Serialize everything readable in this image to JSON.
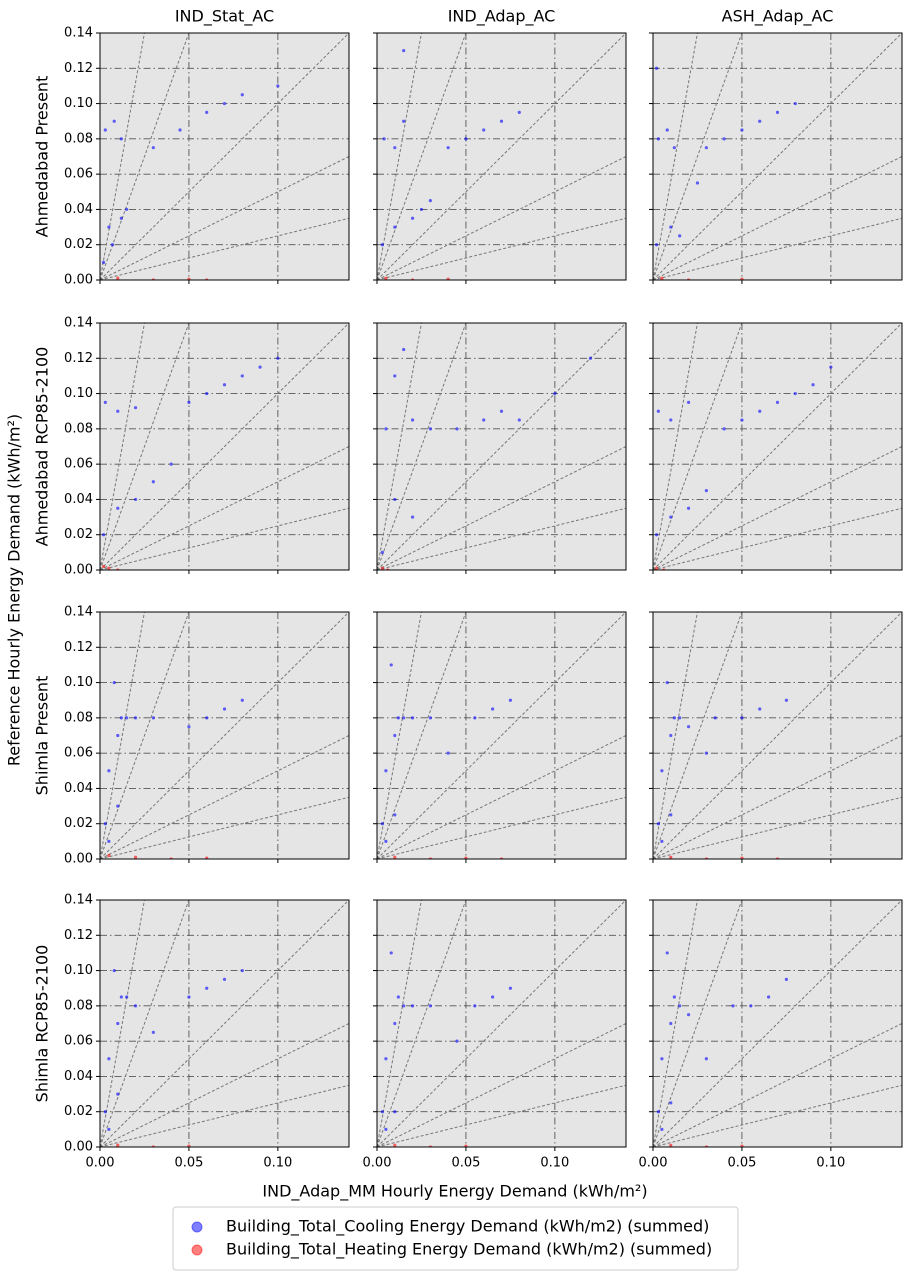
{
  "figure": {
    "xlabel": "IND_Adap_MM Hourly Energy Demand (kWh/m²)",
    "ylabel": "Reference Hourly Energy Demand (kWh/m²)",
    "xlim": [
      0,
      0.14
    ],
    "ylim": [
      0,
      0.14
    ],
    "xticks": [
      {
        "value": 0,
        "label": "0.00"
      },
      {
        "value": 0.05,
        "label": "0.05"
      },
      {
        "value": 0.1,
        "label": "0.10"
      }
    ],
    "yticks": [
      {
        "value": 0,
        "label": "0.00"
      },
      {
        "value": 0.02,
        "label": "0.02"
      },
      {
        "value": 0.04,
        "label": "0.04"
      },
      {
        "value": 0.06,
        "label": "0.06"
      },
      {
        "value": 0.08,
        "label": "0.08"
      },
      {
        "value": 0.1,
        "label": "0.10"
      },
      {
        "value": 0.12,
        "label": "0.12"
      },
      {
        "value": 0.14,
        "label": "0.14"
      }
    ],
    "grid": true,
    "reference_slopes": [
      0.25,
      0.5,
      1,
      2.8,
      5.6
    ],
    "legend": [
      {
        "name": "Building_Total_Cooling Energy Demand (kWh/m2) (summed)",
        "color": "#0000ff"
      },
      {
        "name": "Building_Total_Heating Energy Demand (kWh/m2) (summed)",
        "color": "#ff0000"
      }
    ]
  },
  "chart_data": [
    {
      "type": "scatter",
      "title": "IND_Stat_AC",
      "ylabel": "Ahmedabad Present",
      "series": [
        {
          "x": [
            0.003,
            0.008,
            0.012,
            0.005,
            0.015,
            0.002,
            0.007,
            0.012,
            0.03,
            0.045,
            0.06,
            0.07,
            0.08,
            0.1
          ],
          "values": [
            0.085,
            0.09,
            0.08,
            0.03,
            0.04,
            0.01,
            0.02,
            0.035,
            0.075,
            0.085,
            0.095,
            0.1,
            0.105,
            0.11
          ]
        },
        {
          "x": [
            0.01,
            0.03,
            0.05,
            0.06
          ],
          "values": [
            0.001,
            0,
            0.0005,
            0
          ]
        }
      ]
    },
    {
      "type": "scatter",
      "title": "IND_Adap_AC",
      "series": [
        {
          "x": [
            0.004,
            0.01,
            0.015,
            0.003,
            0.01,
            0.02,
            0.025,
            0.03,
            0.04,
            0.05,
            0.06,
            0.07,
            0.08,
            0.015
          ],
          "values": [
            0.08,
            0.075,
            0.09,
            0.02,
            0.03,
            0.035,
            0.04,
            0.045,
            0.075,
            0.08,
            0.085,
            0.09,
            0.095,
            0.13
          ]
        },
        {
          "x": [
            0.005,
            0.02,
            0.04
          ],
          "values": [
            0.001,
            0,
            0.0005
          ]
        }
      ]
    },
    {
      "type": "scatter",
      "title": "ASH_Adap_AC",
      "series": [
        {
          "x": [
            0.003,
            0.008,
            0.012,
            0.002,
            0.01,
            0.015,
            0.025,
            0.03,
            0.04,
            0.05,
            0.06,
            0.07,
            0.08,
            0.002
          ],
          "values": [
            0.08,
            0.085,
            0.075,
            0.02,
            0.03,
            0.025,
            0.055,
            0.075,
            0.08,
            0.085,
            0.09,
            0.095,
            0.1,
            0.12
          ]
        },
        {
          "x": [
            0.005,
            0.02,
            0.05
          ],
          "values": [
            0.001,
            0,
            0.0005
          ]
        }
      ]
    },
    {
      "type": "scatter",
      "ylabel": "Ahmedabad RCP85-2100",
      "series": [
        {
          "x": [
            0.003,
            0.01,
            0.02,
            0.002,
            0.01,
            0.02,
            0.03,
            0.04,
            0.05,
            0.06,
            0.07,
            0.08,
            0.09,
            0.1
          ],
          "values": [
            0.095,
            0.09,
            0.092,
            0.02,
            0.035,
            0.04,
            0.05,
            0.06,
            0.095,
            0.1,
            0.105,
            0.11,
            0.115,
            0.12
          ]
        },
        {
          "x": [
            0.002,
            0.005,
            0.01
          ],
          "values": [
            0.002,
            0.001,
            0
          ]
        }
      ]
    },
    {
      "type": "scatter",
      "series": [
        {
          "x": [
            0.005,
            0.01,
            0.015,
            0.02,
            0.03,
            0.045,
            0.06,
            0.07,
            0.08,
            0.1,
            0.12,
            0.003,
            0.01,
            0.02
          ],
          "values": [
            0.08,
            0.11,
            0.125,
            0.085,
            0.08,
            0.08,
            0.085,
            0.09,
            0.085,
            0.1,
            0.12,
            0.01,
            0.04,
            0.03
          ]
        },
        {
          "x": [
            0.003,
            0.006
          ],
          "values": [
            0.001,
            0
          ]
        }
      ]
    },
    {
      "type": "scatter",
      "series": [
        {
          "x": [
            0.003,
            0.01,
            0.02,
            0.002,
            0.01,
            0.02,
            0.03,
            0.04,
            0.05,
            0.06,
            0.07,
            0.08,
            0.09,
            0.1
          ],
          "values": [
            0.09,
            0.085,
            0.095,
            0.02,
            0.03,
            0.035,
            0.045,
            0.08,
            0.085,
            0.09,
            0.095,
            0.1,
            0.105,
            0.115
          ]
        },
        {
          "x": [
            0.002,
            0.006
          ],
          "values": [
            0.001,
            0
          ]
        }
      ]
    },
    {
      "type": "scatter",
      "ylabel": "Shimla Present",
      "series": [
        {
          "x": [
            0.005,
            0.01,
            0.012,
            0.008,
            0.003,
            0.015,
            0.02,
            0.03,
            0.05,
            0.06,
            0.07,
            0.08,
            0.01,
            0.005
          ],
          "values": [
            0.05,
            0.07,
            0.08,
            0.1,
            0.02,
            0.08,
            0.08,
            0.08,
            0.075,
            0.08,
            0.085,
            0.09,
            0.03,
            0.01
          ]
        },
        {
          "x": [
            0.005,
            0.02,
            0.04,
            0.06
          ],
          "values": [
            0.002,
            0.001,
            0,
            0.0005
          ]
        }
      ]
    },
    {
      "type": "scatter",
      "series": [
        {
          "x": [
            0.005,
            0.01,
            0.012,
            0.008,
            0.003,
            0.015,
            0.02,
            0.03,
            0.04,
            0.055,
            0.065,
            0.075,
            0.01,
            0.005
          ],
          "values": [
            0.05,
            0.07,
            0.08,
            0.11,
            0.02,
            0.08,
            0.08,
            0.08,
            0.06,
            0.08,
            0.085,
            0.09,
            0.025,
            0.01
          ]
        },
        {
          "x": [
            0.01,
            0.03,
            0.05,
            0.07
          ],
          "values": [
            0.001,
            0,
            0.0005,
            0
          ]
        }
      ]
    },
    {
      "type": "scatter",
      "series": [
        {
          "x": [
            0.005,
            0.01,
            0.012,
            0.008,
            0.003,
            0.015,
            0.02,
            0.03,
            0.035,
            0.05,
            0.06,
            0.075,
            0.01,
            0.005
          ],
          "values": [
            0.05,
            0.07,
            0.08,
            0.1,
            0.02,
            0.08,
            0.075,
            0.06,
            0.08,
            0.08,
            0.085,
            0.09,
            0.025,
            0.01
          ]
        },
        {
          "x": [
            0.01,
            0.03,
            0.05,
            0.07
          ],
          "values": [
            0.001,
            0,
            0.0005,
            0
          ]
        }
      ]
    },
    {
      "type": "scatter",
      "ylabel": "Shimla RCP85-2100",
      "series": [
        {
          "x": [
            0.005,
            0.01,
            0.012,
            0.008,
            0.003,
            0.015,
            0.02,
            0.03,
            0.05,
            0.06,
            0.07,
            0.08,
            0.01,
            0.005
          ],
          "values": [
            0.05,
            0.07,
            0.085,
            0.1,
            0.02,
            0.085,
            0.08,
            0.065,
            0.085,
            0.09,
            0.095,
            0.1,
            0.03,
            0.01
          ]
        },
        {
          "x": [
            0.01,
            0.03,
            0.05
          ],
          "values": [
            0.001,
            0,
            0.0005
          ]
        }
      ]
    },
    {
      "type": "scatter",
      "series": [
        {
          "x": [
            0.005,
            0.01,
            0.012,
            0.008,
            0.003,
            0.015,
            0.02,
            0.03,
            0.045,
            0.055,
            0.065,
            0.075,
            0.01,
            0.005
          ],
          "values": [
            0.05,
            0.07,
            0.085,
            0.11,
            0.02,
            0.08,
            0.08,
            0.08,
            0.06,
            0.08,
            0.085,
            0.09,
            0.02,
            0.01
          ]
        },
        {
          "x": [
            0.01,
            0.03,
            0.05
          ],
          "values": [
            0.001,
            0,
            0.0005
          ]
        }
      ]
    },
    {
      "type": "scatter",
      "series": [
        {
          "x": [
            0.005,
            0.01,
            0.012,
            0.008,
            0.003,
            0.015,
            0.02,
            0.03,
            0.045,
            0.055,
            0.065,
            0.075,
            0.01,
            0.005
          ],
          "values": [
            0.05,
            0.07,
            0.085,
            0.11,
            0.02,
            0.08,
            0.075,
            0.05,
            0.08,
            0.08,
            0.085,
            0.095,
            0.025,
            0.01
          ]
        },
        {
          "x": [
            0.01,
            0.03,
            0.05
          ],
          "values": [
            0.001,
            0,
            0.0005
          ]
        }
      ]
    }
  ]
}
